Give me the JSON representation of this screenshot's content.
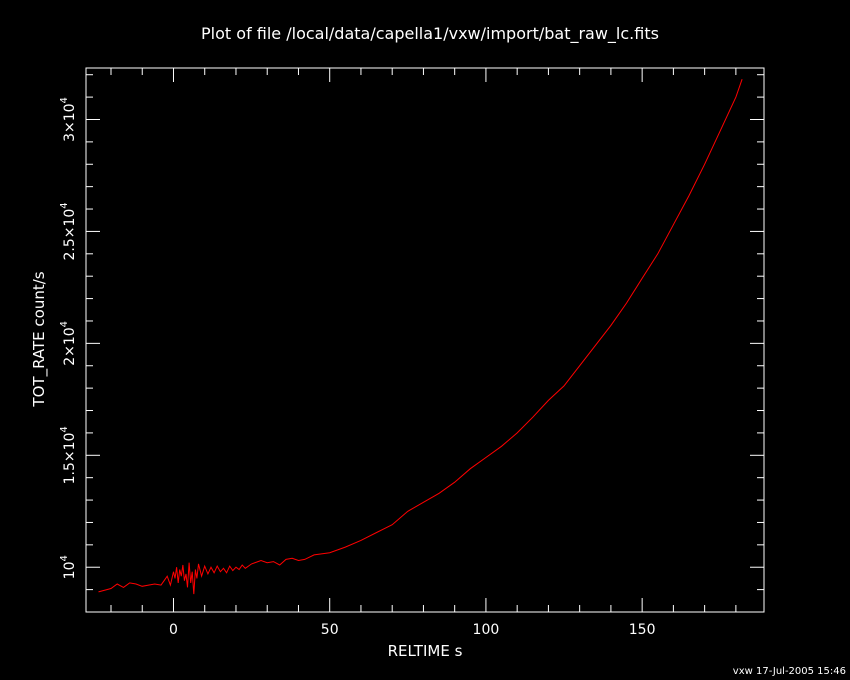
{
  "colors": {
    "background": "#000000",
    "foreground": "#ffffff",
    "series": "#ff0000"
  },
  "chart_data": {
    "type": "line",
    "title": "Plot of file /local/data/capella1/vxw/import/bat_raw_lc.fits",
    "xlabel": "RELTIME  s",
    "ylabel": "TOT_RATE  count/s",
    "footer": "vxw 17-Jul-2005 15:46",
    "xlim": [
      -28,
      189
    ],
    "ylim": [
      8000,
      32300
    ],
    "x_ticks": [
      0,
      50,
      100,
      150
    ],
    "x_tick_labels": [
      "0",
      "50",
      "100",
      "150"
    ],
    "y_ticks": [
      10000,
      15000,
      20000,
      25000,
      30000
    ],
    "y_tick_labels": [
      {
        "mantissa": "",
        "exponent": "4"
      },
      {
        "mantissa": "1.5×10",
        "exponent": "4"
      },
      {
        "mantissa": "2×10",
        "exponent": "4"
      },
      {
        "mantissa": "2.5×10",
        "exponent": "4"
      },
      {
        "mantissa": "3×10",
        "exponent": "4"
      }
    ],
    "grid": false,
    "series": [
      {
        "color": "#ff0000",
        "points": [
          [
            -24,
            8900
          ],
          [
            -20,
            9050
          ],
          [
            -18,
            9250
          ],
          [
            -16,
            9100
          ],
          [
            -14,
            9300
          ],
          [
            -12,
            9250
          ],
          [
            -10,
            9150
          ],
          [
            -8,
            9200
          ],
          [
            -6,
            9250
          ],
          [
            -4,
            9200
          ],
          [
            -3,
            9400
          ],
          [
            -2,
            9600
          ],
          [
            -1,
            9200
          ],
          [
            0,
            9800
          ],
          [
            0.5,
            9500
          ],
          [
            1,
            10000
          ],
          [
            1.5,
            9300
          ],
          [
            2,
            9900
          ],
          [
            2.5,
            9600
          ],
          [
            3,
            10100
          ],
          [
            3.5,
            9400
          ],
          [
            4,
            9700
          ],
          [
            4.5,
            9100
          ],
          [
            5,
            10200
          ],
          [
            5.5,
            9300
          ],
          [
            6,
            9800
          ],
          [
            6.5,
            8800
          ],
          [
            7,
            9900
          ],
          [
            7.5,
            9500
          ],
          [
            8,
            10150
          ],
          [
            9,
            9600
          ],
          [
            10,
            10050
          ],
          [
            11,
            9700
          ],
          [
            12,
            10000
          ],
          [
            13,
            9750
          ],
          [
            14,
            10050
          ],
          [
            15,
            9800
          ],
          [
            16,
            9950
          ],
          [
            17,
            9750
          ],
          [
            18,
            10050
          ],
          [
            19,
            9850
          ],
          [
            20,
            10000
          ],
          [
            21,
            9900
          ],
          [
            22,
            10100
          ],
          [
            23,
            9950
          ],
          [
            25,
            10150
          ],
          [
            28,
            10300
          ],
          [
            30,
            10200
          ],
          [
            32,
            10250
          ],
          [
            34,
            10100
          ],
          [
            36,
            10350
          ],
          [
            38,
            10400
          ],
          [
            40,
            10300
          ],
          [
            42,
            10350
          ],
          [
            45,
            10550
          ],
          [
            50,
            10650
          ],
          [
            55,
            10900
          ],
          [
            60,
            11200
          ],
          [
            65,
            11550
          ],
          [
            70,
            11900
          ],
          [
            75,
            12500
          ],
          [
            80,
            12900
          ],
          [
            85,
            13300
          ],
          [
            90,
            13800
          ],
          [
            95,
            14400
          ],
          [
            100,
            14900
          ],
          [
            105,
            15400
          ],
          [
            110,
            16000
          ],
          [
            115,
            16700
          ],
          [
            120,
            17450
          ],
          [
            125,
            18100
          ],
          [
            130,
            19000
          ],
          [
            135,
            19900
          ],
          [
            140,
            20800
          ],
          [
            145,
            21800
          ],
          [
            150,
            22900
          ],
          [
            155,
            24000
          ],
          [
            160,
            25300
          ],
          [
            165,
            26600
          ],
          [
            170,
            28000
          ],
          [
            175,
            29500
          ],
          [
            180,
            31000
          ],
          [
            182,
            31800
          ]
        ]
      }
    ]
  }
}
